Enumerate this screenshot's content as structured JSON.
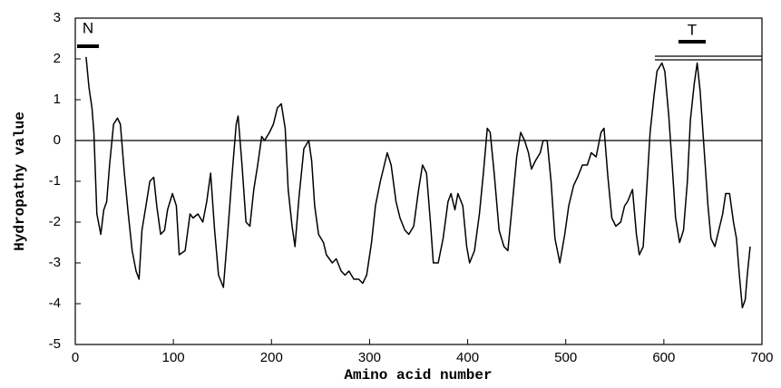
{
  "chart_data": {
    "type": "line",
    "xlabel": "Amino acid number",
    "ylabel": "Hydropathy value",
    "annotations": [
      "N",
      "T"
    ],
    "color": "#000000",
    "reference_line": 0,
    "xlim": [
      0,
      700
    ],
    "xticks": [
      0,
      100,
      200,
      300,
      400,
      500,
      600,
      700
    ],
    "ylim": [
      -5,
      3
    ],
    "yticks": [
      -5,
      -4,
      -3,
      -2,
      -1,
      0,
      1,
      2,
      3
    ],
    "x": [
      11,
      14,
      17,
      19,
      22,
      26,
      29,
      32,
      35,
      39,
      43,
      46,
      50,
      54,
      58,
      62,
      65,
      68,
      72,
      76,
      80,
      83,
      87,
      91,
      94,
      99,
      103,
      106,
      112,
      117,
      120,
      125,
      130,
      134,
      138,
      142,
      146,
      151,
      155,
      160,
      164,
      166,
      170,
      174,
      178,
      182,
      186,
      190,
      193,
      198,
      202,
      206,
      210,
      214,
      217,
      221,
      224,
      228,
      233,
      238,
      241,
      244,
      248,
      253,
      256,
      262,
      266,
      271,
      275,
      279,
      284,
      289,
      293,
      297,
      302,
      306,
      311,
      315,
      318,
      322,
      327,
      331,
      336,
      340,
      345,
      350,
      354,
      358,
      362,
      365,
      370,
      375,
      380,
      383,
      387,
      390,
      395,
      399,
      402,
      407,
      412,
      416,
      420,
      423,
      427,
      432,
      437,
      441,
      445,
      450,
      454,
      458,
      462,
      465,
      469,
      474,
      477,
      481,
      485,
      489,
      494,
      499,
      503,
      508,
      512,
      517,
      522,
      526,
      531,
      536,
      539,
      543,
      547,
      551,
      556,
      560,
      563,
      568,
      572,
      575,
      579,
      583,
      586,
      590,
      593,
      598,
      601,
      605,
      609,
      612,
      616,
      620,
      624,
      627,
      631,
      634,
      637,
      641,
      645,
      648,
      652,
      656,
      660,
      663,
      667,
      671,
      674,
      677,
      680,
      683,
      685,
      688
    ],
    "values": [
      2.05,
      1.3,
      0.8,
      0.2,
      -1.8,
      -2.3,
      -1.7,
      -1.5,
      -0.6,
      0.4,
      0.55,
      0.4,
      -0.8,
      -1.8,
      -2.7,
      -3.2,
      -3.4,
      -2.2,
      -1.6,
      -1.0,
      -0.9,
      -1.6,
      -2.3,
      -2.2,
      -1.7,
      -1.3,
      -1.6,
      -2.8,
      -2.7,
      -1.8,
      -1.9,
      -1.8,
      -2.0,
      -1.5,
      -0.8,
      -2.2,
      -3.3,
      -3.6,
      -2.4,
      -0.8,
      0.4,
      0.6,
      -0.6,
      -2.0,
      -2.1,
      -1.2,
      -0.6,
      0.1,
      0.0,
      0.2,
      0.4,
      0.8,
      0.9,
      0.3,
      -1.2,
      -2.1,
      -2.6,
      -1.4,
      -0.2,
      0.0,
      -0.5,
      -1.6,
      -2.3,
      -2.5,
      -2.8,
      -3.0,
      -2.9,
      -3.2,
      -3.3,
      -3.2,
      -3.4,
      -3.4,
      -3.5,
      -3.3,
      -2.5,
      -1.6,
      -1.0,
      -0.6,
      -0.3,
      -0.6,
      -1.5,
      -1.9,
      -2.2,
      -2.3,
      -2.1,
      -1.2,
      -0.6,
      -0.8,
      -2.0,
      -3.0,
      -3.0,
      -2.4,
      -1.5,
      -1.3,
      -1.7,
      -1.3,
      -1.6,
      -2.6,
      -3.0,
      -2.7,
      -1.8,
      -0.8,
      0.3,
      0.2,
      -0.8,
      -2.2,
      -2.6,
      -2.7,
      -1.7,
      -0.4,
      0.2,
      0.0,
      -0.3,
      -0.7,
      -0.5,
      -0.3,
      0.0,
      0.0,
      -1.0,
      -2.4,
      -3.0,
      -2.3,
      -1.6,
      -1.1,
      -0.9,
      -0.6,
      -0.6,
      -0.3,
      -0.4,
      0.2,
      0.3,
      -0.9,
      -1.9,
      -2.1,
      -2.0,
      -1.6,
      -1.5,
      -1.2,
      -2.3,
      -2.8,
      -2.6,
      -1.0,
      0.2,
      1.1,
      1.7,
      1.9,
      1.7,
      0.6,
      -0.8,
      -1.9,
      -2.5,
      -2.2,
      -1.0,
      0.5,
      1.4,
      1.9,
      1.2,
      -0.2,
      -1.6,
      -2.4,
      -2.6,
      -2.2,
      -1.8,
      -1.3,
      -1.3,
      -2.0,
      -2.4,
      -3.3,
      -4.1,
      -3.9,
      -3.3,
      -2.6
    ]
  }
}
